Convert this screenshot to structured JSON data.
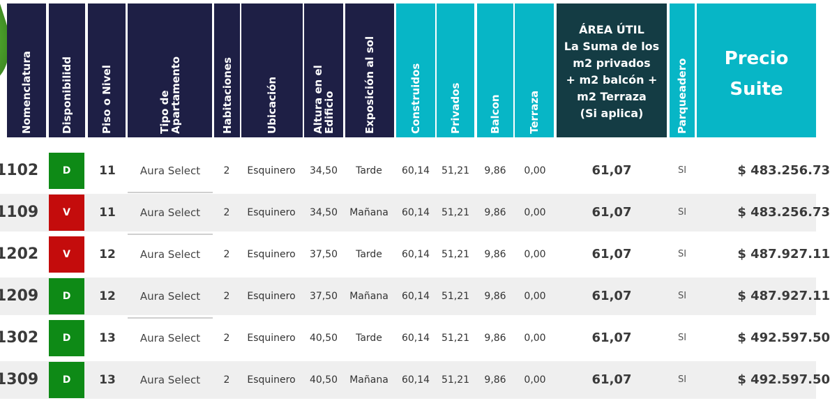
{
  "colors": {
    "header_dark": "#1e1f45",
    "header_teal": "#07b6c6",
    "header_area": "#143c44",
    "badge_D": "#0e8a16",
    "badge_V": "#c40c0c",
    "row_alt": "#efefef"
  },
  "header": {
    "nomenclatura": "Nomenclatura",
    "disponibilidad": "Disponibilidd",
    "piso": "Piso o Nivel",
    "tipo_1": "Tipo de",
    "tipo_2": "Apartamento",
    "habitaciones": "Habitaciones",
    "ubicacion": "Ubicación",
    "altura_1": "Altura en el",
    "altura_2": "Edificio",
    "exposicion": "Exposición al sol",
    "construidos": "Construidos",
    "privados": "Privados",
    "balcon": "Balcon",
    "terraza": "Terraza",
    "area_1": "ÁREA ÚTIL",
    "area_2": "La Suma de los",
    "area_3": "m2 privados",
    "area_4": "+ m2 balcón +",
    "area_5": "m2 Terraza",
    "area_6": "(Si aplica)",
    "parqueadero": "Parqueadero",
    "precio_1": "Precio",
    "precio_2": "Suite"
  },
  "rows": [
    {
      "nom": "1102",
      "disp": "D",
      "piso": "11",
      "tipo": "Aura Select",
      "hab": "2",
      "ubi": "Esquinero",
      "altura": "34,50",
      "exp": "Tarde",
      "con": "60,14",
      "pri": "51,21",
      "bal": "9,86",
      "ter": "0,00",
      "area": "61,07",
      "parq": "SI",
      "precio": "$ 483.256.73"
    },
    {
      "nom": "1109",
      "disp": "V",
      "piso": "11",
      "tipo": "Aura Select",
      "hab": "2",
      "ubi": "Esquinero",
      "altura": "34,50",
      "exp": "Mañana",
      "con": "60,14",
      "pri": "51,21",
      "bal": "9,86",
      "ter": "0,00",
      "area": "61,07",
      "parq": "SI",
      "precio": "$ 483.256.73"
    },
    {
      "nom": "1202",
      "disp": "V",
      "piso": "12",
      "tipo": "Aura Select",
      "hab": "2",
      "ubi": "Esquinero",
      "altura": "37,50",
      "exp": "Tarde",
      "con": "60,14",
      "pri": "51,21",
      "bal": "9,86",
      "ter": "0,00",
      "area": "61,07",
      "parq": "SI",
      "precio": "$ 487.927.11"
    },
    {
      "nom": "1209",
      "disp": "D",
      "piso": "12",
      "tipo": "Aura Select",
      "hab": "2",
      "ubi": "Esquinero",
      "altura": "37,50",
      "exp": "Mañana",
      "con": "60,14",
      "pri": "51,21",
      "bal": "9,86",
      "ter": "0,00",
      "area": "61,07",
      "parq": "SI",
      "precio": "$ 487.927.11"
    },
    {
      "nom": "1302",
      "disp": "D",
      "piso": "13",
      "tipo": "Aura Select",
      "hab": "2",
      "ubi": "Esquinero",
      "altura": "40,50",
      "exp": "Tarde",
      "con": "60,14",
      "pri": "51,21",
      "bal": "9,86",
      "ter": "0,00",
      "area": "61,07",
      "parq": "SI",
      "precio": "$ 492.597.50"
    },
    {
      "nom": "1309",
      "disp": "D",
      "piso": "13",
      "tipo": "Aura Select",
      "hab": "2",
      "ubi": "Esquinero",
      "altura": "40,50",
      "exp": "Mañana",
      "con": "60,14",
      "pri": "51,21",
      "bal": "9,86",
      "ter": "0,00",
      "area": "61,07",
      "parq": "SI",
      "precio": "$ 492.597.50"
    }
  ]
}
